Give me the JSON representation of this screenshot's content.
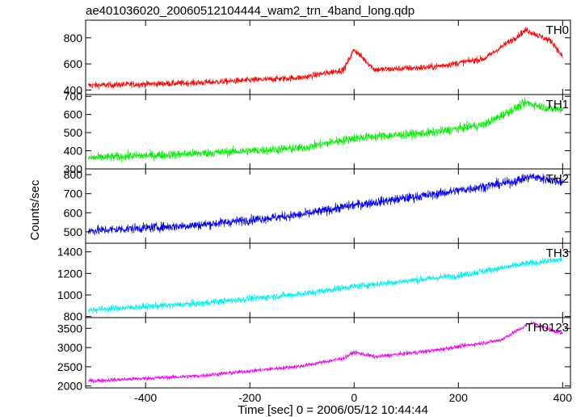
{
  "chart_data": {
    "type": "line",
    "title": "ae401036020_20060512104444_wam2_trn_4band_long.qdp",
    "xlabel": "Time [sec] 0 = 2006/05/12 10:44:44",
    "ylabel": "Counts/sec",
    "xlim": [
      -515,
      415
    ],
    "xticks": [
      -400,
      -200,
      0,
      200,
      400
    ],
    "grid": false,
    "panels": [
      {
        "name": "TH0",
        "color": "#ff0000",
        "ylim": [
          365,
          935
        ],
        "yticks": [
          400,
          600,
          800
        ],
        "trend": [
          [
            -510,
            435
          ],
          [
            -300,
            455
          ],
          [
            -100,
            495
          ],
          [
            -20,
            555
          ],
          [
            0,
            710
          ],
          [
            40,
            555
          ],
          [
            150,
            575
          ],
          [
            250,
            640
          ],
          [
            330,
            860
          ],
          [
            380,
            770
          ],
          [
            400,
            650
          ]
        ],
        "noise": 55
      },
      {
        "name": "TH1",
        "color": "#00ee00",
        "ylim": [
          300,
          710
        ],
        "yticks": [
          300,
          400,
          500,
          600,
          700
        ],
        "trend": [
          [
            -510,
            360
          ],
          [
            -300,
            385
          ],
          [
            -100,
            415
          ],
          [
            0,
            470
          ],
          [
            150,
            500
          ],
          [
            250,
            545
          ],
          [
            330,
            665
          ],
          [
            380,
            630
          ],
          [
            400,
            630
          ]
        ],
        "noise": 55
      },
      {
        "name": "TH2",
        "color": "#0000ee",
        "ylim": [
          440,
          830
        ],
        "yticks": [
          500,
          600,
          700,
          800
        ],
        "trend": [
          [
            -510,
            505
          ],
          [
            -300,
            535
          ],
          [
            -100,
            590
          ],
          [
            0,
            640
          ],
          [
            150,
            695
          ],
          [
            300,
            760
          ],
          [
            340,
            790
          ],
          [
            400,
            760
          ]
        ],
        "noise": 55
      },
      {
        "name": "TH3",
        "color": "#00eeee",
        "ylim": [
          790,
          1480
        ],
        "yticks": [
          800,
          1000,
          1200,
          1400
        ],
        "trend": [
          [
            -510,
            860
          ],
          [
            -300,
            920
          ],
          [
            -100,
            1010
          ],
          [
            0,
            1080
          ],
          [
            200,
            1180
          ],
          [
            330,
            1290
          ],
          [
            400,
            1330
          ]
        ],
        "noise": 70
      },
      {
        "name": "TH0123",
        "color": "#ee00ee",
        "ylim": [
          1950,
          3780
        ],
        "yticks": [
          2000,
          2500,
          3000,
          3500
        ],
        "trend": [
          [
            -510,
            2130
          ],
          [
            -300,
            2260
          ],
          [
            -100,
            2520
          ],
          [
            -20,
            2720
          ],
          [
            0,
            2880
          ],
          [
            40,
            2760
          ],
          [
            150,
            2920
          ],
          [
            280,
            3190
          ],
          [
            340,
            3650
          ],
          [
            400,
            3360
          ]
        ],
        "noise": 120
      }
    ]
  }
}
